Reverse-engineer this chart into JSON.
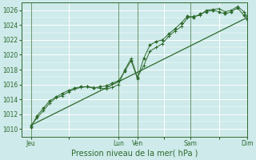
{
  "xlabel": "Pression niveau de la mer( hPa )",
  "bg_color": "#ceeaea",
  "grid_major_color": "#aed4d4",
  "grid_minor_color": "#bce0e0",
  "line_color": "#2d6a2d",
  "ylim": [
    1009,
    1027
  ],
  "yticks": [
    1010,
    1012,
    1014,
    1016,
    1018,
    1020,
    1022,
    1024,
    1026
  ],
  "xlim": [
    0,
    144
  ],
  "day_labels": [
    "Jeu",
    "",
    "Lun",
    "Ven",
    "",
    "Sam",
    "",
    "Dim"
  ],
  "day_positions": [
    6,
    30,
    62,
    74,
    91,
    108,
    126,
    144
  ],
  "vline_positions": [
    6,
    62,
    74,
    108,
    144
  ],
  "trend_x": [
    6,
    144
  ],
  "trend_y": [
    1010.5,
    1025.0
  ],
  "line1_x": [
    6,
    10,
    14,
    18,
    22,
    26,
    30,
    34,
    38,
    42,
    46,
    50,
    54,
    58,
    62,
    66,
    70,
    74,
    78,
    82,
    86,
    90,
    94,
    98,
    102,
    106,
    110,
    114,
    118,
    122,
    126,
    130,
    134,
    138,
    142,
    144
  ],
  "line1_y": [
    1010.5,
    1011.5,
    1012.5,
    1013.5,
    1014.2,
    1014.5,
    1015.0,
    1015.4,
    1015.6,
    1015.7,
    1015.6,
    1015.5,
    1015.4,
    1015.6,
    1016.0,
    1018.0,
    1019.5,
    1017.0,
    1018.5,
    1020.5,
    1021.0,
    1021.5,
    1022.5,
    1023.2,
    1023.8,
    1025.0,
    1025.2,
    1025.3,
    1026.0,
    1026.1,
    1026.2,
    1025.8,
    1026.0,
    1026.5,
    1025.8,
    1025.2
  ],
  "line2_x": [
    6,
    10,
    14,
    18,
    22,
    26,
    30,
    34,
    38,
    42,
    46,
    50,
    54,
    58,
    62,
    66,
    70,
    74,
    78,
    82,
    86,
    90,
    94,
    98,
    102,
    106,
    110,
    114,
    118,
    122,
    126,
    130,
    134,
    138,
    142,
    144
  ],
  "line2_y": [
    1010.3,
    1011.8,
    1012.8,
    1013.8,
    1014.3,
    1014.8,
    1015.2,
    1015.5,
    1015.7,
    1015.7,
    1015.5,
    1015.7,
    1015.8,
    1016.2,
    1016.5,
    1017.8,
    1019.2,
    1016.8,
    1019.5,
    1021.3,
    1021.8,
    1022.0,
    1022.8,
    1023.5,
    1024.3,
    1025.2,
    1025.0,
    1025.5,
    1025.8,
    1026.0,
    1025.8,
    1025.5,
    1025.8,
    1026.3,
    1025.3,
    1024.8
  ]
}
